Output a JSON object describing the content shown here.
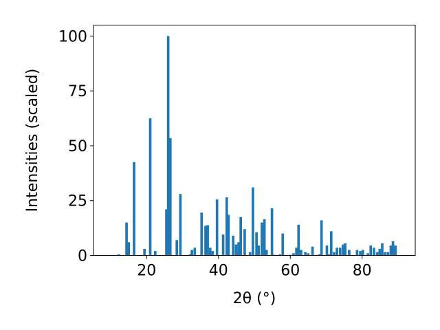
{
  "chart_data": {
    "type": "bar",
    "xlabel": "2θ (°)",
    "ylabel": "Intensities (scaled)",
    "xlim": [
      5.2,
      94.8
    ],
    "ylim": [
      0,
      105
    ],
    "xticks": [
      20,
      40,
      60,
      80
    ],
    "yticks": [
      0,
      25,
      50,
      75,
      100
    ],
    "xtick_labels": [
      "20",
      "40",
      "60",
      "80"
    ],
    "ytick_labels": [
      "0",
      "25",
      "50",
      "75",
      "100"
    ],
    "grid": false,
    "bar_width": 0.7,
    "color": "#1f77b4",
    "x": [
      12.2,
      14.4,
      15.0,
      16.5,
      19.4,
      21.0,
      22.4,
      25.5,
      26.0,
      26.6,
      28.4,
      29.4,
      32.1,
      32.6,
      33.4,
      35.3,
      36.4,
      37.0,
      37.7,
      38.4,
      39.6,
      41.3,
      42.3,
      42.8,
      44.1,
      44.9,
      45.6,
      46.2,
      47.3,
      48.8,
      49.6,
      50.6,
      51.2,
      52.1,
      52.8,
      53.4,
      54.9,
      55.6,
      57.1,
      57.9,
      59.9,
      60.9,
      61.7,
      62.3,
      63.0,
      64.2,
      65.0,
      66.2,
      68.1,
      68.7,
      70.2,
      70.8,
      71.4,
      72.2,
      73.0,
      73.9,
      74.7,
      75.3,
      76.4,
      78.6,
      79.5,
      80.2,
      81.6,
      82.4,
      83.3,
      84.2,
      84.9,
      85.6,
      86.4,
      87.2,
      88.0,
      88.6,
      89.3
    ],
    "values": [
      0.5,
      15,
      6,
      42.5,
      3,
      62.5,
      2,
      21,
      100,
      53.5,
      7,
      28,
      0.5,
      2.5,
      3.5,
      19.5,
      13.5,
      13.8,
      3.5,
      2,
      25.5,
      9.5,
      26.5,
      18.5,
      9,
      5,
      6,
      17.5,
      12,
      1.5,
      31,
      10.5,
      4.5,
      15,
      16.5,
      2.5,
      21.5,
      0.3,
      0.5,
      10,
      0.3,
      1,
      3.5,
      14,
      2.5,
      1.5,
      1,
      4,
      0.5,
      16,
      4.5,
      0.5,
      11,
      1.5,
      3.5,
      3.5,
      5,
      5.5,
      2.5,
      2.5,
      2,
      2.5,
      1,
      4.5,
      3.5,
      1.5,
      3,
      5.5,
      1.5,
      1.5,
      4.5,
      6.5,
      4.5
    ]
  }
}
